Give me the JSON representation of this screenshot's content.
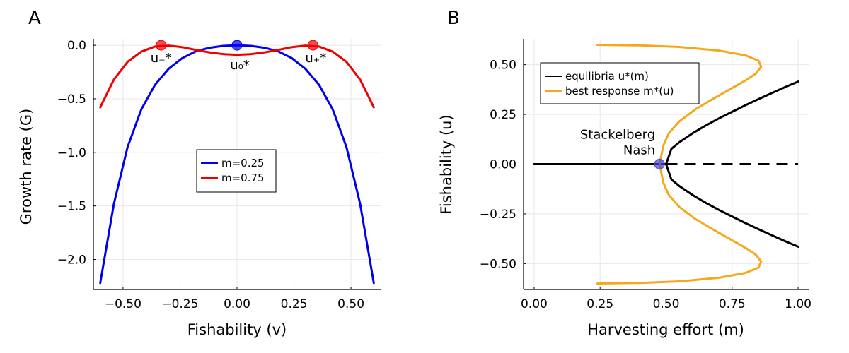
{
  "panels": [
    {
      "letter": "A",
      "xlabel": "Fishability (v)",
      "ylabel": "Growth rate (G)"
    },
    {
      "letter": "B",
      "xlabel": "Harvesting effort (m)",
      "ylabel": "Fishability (u)"
    }
  ],
  "chart_data": [
    {
      "type": "line",
      "title": "",
      "xlabel": "Fishability (v)",
      "ylabel": "Growth rate (G)",
      "xlim": [
        -0.63,
        0.63
      ],
      "ylim": [
        -2.28,
        0.06
      ],
      "xticks": [
        -0.5,
        -0.25,
        0.0,
        0.25,
        0.5
      ],
      "xtick_labels": [
        "−0.50",
        "−0.25",
        "0.00",
        "0.25",
        "0.50"
      ],
      "yticks": [
        0.0,
        -0.5,
        -1.0,
        -1.5,
        -2.0
      ],
      "ytick_labels": [
        "0.0",
        "−0.5",
        "−1.0",
        "−1.5",
        "−2.0"
      ],
      "grid": true,
      "legend_position": "center-right",
      "series": [
        {
          "name": "m=0.25",
          "color": "#0000ee",
          "x": [
            -0.6,
            -0.54,
            -0.48,
            -0.42,
            -0.36,
            -0.3,
            -0.24,
            -0.18,
            -0.12,
            -0.06,
            0.0,
            0.06,
            0.12,
            0.18,
            0.24,
            0.3,
            0.36,
            0.42,
            0.48,
            0.54,
            0.6
          ],
          "y": [
            -2.22,
            -1.48,
            -0.95,
            -0.6,
            -0.37,
            -0.22,
            -0.12,
            -0.056,
            -0.023,
            -0.006,
            0.0,
            -0.006,
            -0.023,
            -0.056,
            -0.12,
            -0.22,
            -0.37,
            -0.6,
            -0.95,
            -1.48,
            -2.22
          ]
        },
        {
          "name": "m=0.75",
          "color": "#ee0000",
          "x": [
            -0.6,
            -0.54,
            -0.48,
            -0.42,
            -0.36,
            -0.3,
            -0.24,
            -0.18,
            -0.12,
            -0.06,
            0.0,
            0.06,
            0.12,
            0.18,
            0.24,
            0.3,
            0.36,
            0.42,
            0.48,
            0.54,
            0.6
          ],
          "y": [
            -0.58,
            -0.32,
            -0.155,
            -0.06,
            -0.012,
            -0.003,
            -0.018,
            -0.044,
            -0.067,
            -0.083,
            -0.089,
            -0.083,
            -0.067,
            -0.044,
            -0.018,
            -0.003,
            -0.012,
            -0.06,
            -0.155,
            -0.32,
            -0.58
          ]
        }
      ],
      "points": [
        {
          "label": "u₋*",
          "x": -0.333,
          "y": 0.0,
          "color": "#ee0000"
        },
        {
          "label": "u₀*",
          "x": 0.0,
          "y": 0.0,
          "color": "#0000ee"
        },
        {
          "label": "u₊*",
          "x": 0.333,
          "y": 0.0,
          "color": "#ee0000"
        }
      ]
    },
    {
      "type": "line",
      "title": "",
      "xlabel": "Harvesting effort (m)",
      "ylabel": "Fishability (u)",
      "xlim": [
        -0.04,
        1.04
      ],
      "ylim": [
        -0.63,
        0.63
      ],
      "xticks": [
        0.0,
        0.25,
        0.5,
        0.75,
        1.0
      ],
      "xtick_labels": [
        "0.00",
        "0.25",
        "0.50",
        "0.75",
        "1.00"
      ],
      "yticks": [
        0.5,
        0.25,
        0.0,
        -0.25,
        -0.5
      ],
      "ytick_labels": [
        "0.50",
        "0.25",
        "0.00",
        "−0.25",
        "−0.50"
      ],
      "grid": true,
      "legend_position": "top-left",
      "series": [
        {
          "name": "equilibria u*(m)",
          "color": "#000000",
          "x": [
            1.0,
            0.95,
            0.9,
            0.85,
            0.8,
            0.75,
            0.7,
            0.65,
            0.6,
            0.55,
            0.52,
            0.5,
            0.52,
            0.55,
            0.6,
            0.65,
            0.7,
            0.75,
            0.8,
            0.85,
            0.9,
            0.95,
            1.0
          ],
          "y": [
            0.415,
            0.387,
            0.357,
            0.327,
            0.296,
            0.263,
            0.23,
            0.194,
            0.155,
            0.11,
            0.077,
            0.0,
            -0.077,
            -0.11,
            -0.155,
            -0.194,
            -0.23,
            -0.263,
            -0.296,
            -0.327,
            -0.357,
            -0.387,
            -0.415
          ]
        },
        {
          "name": "",
          "color": "#000000",
          "x": [
            0.0,
            0.5
          ],
          "y": [
            0.0,
            0.0
          ]
        },
        {
          "name": "",
          "color": "#000000",
          "dashed": true,
          "x": [
            0.5,
            1.0
          ],
          "y": [
            0.0,
            0.0
          ]
        },
        {
          "name": "best response m*(u)",
          "color": "#f6a81c",
          "x": [
            0.24,
            0.4,
            0.55,
            0.7,
            0.8,
            0.85,
            0.86,
            0.84,
            0.8,
            0.74,
            0.68,
            0.61,
            0.55,
            0.51,
            0.49,
            0.475,
            0.49,
            0.51,
            0.55,
            0.61,
            0.68,
            0.74,
            0.8,
            0.84,
            0.86,
            0.85,
            0.8,
            0.7,
            0.55,
            0.4,
            0.24
          ],
          "y": [
            0.6,
            0.597,
            0.589,
            0.571,
            0.547,
            0.52,
            0.49,
            0.455,
            0.42,
            0.375,
            0.33,
            0.275,
            0.215,
            0.155,
            0.095,
            0.0,
            -0.095,
            -0.155,
            -0.215,
            -0.275,
            -0.33,
            -0.375,
            -0.42,
            -0.455,
            -0.49,
            -0.52,
            -0.547,
            -0.571,
            -0.589,
            -0.597,
            -0.6
          ]
        }
      ],
      "points": [
        {
          "label": "Stackelberg\nNash",
          "x": 0.475,
          "y": 0.0,
          "color": "#4444dd"
        }
      ]
    }
  ]
}
